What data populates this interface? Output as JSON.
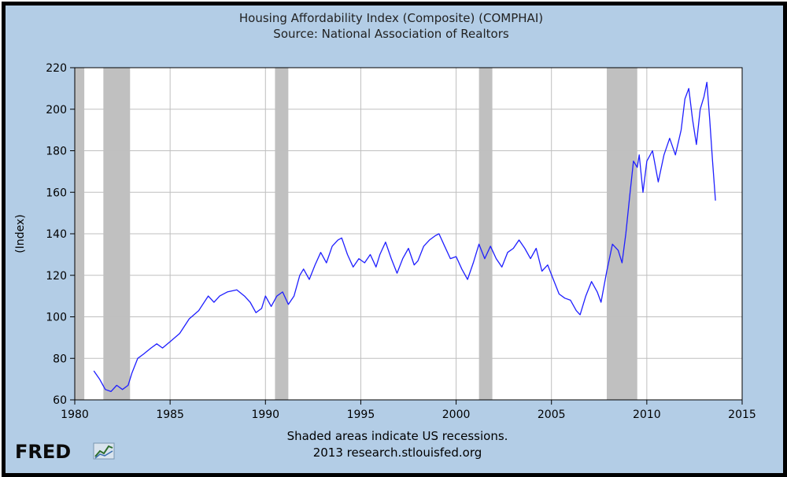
{
  "chart_data": {
    "type": "line",
    "title": "Housing Affordability Index (Composite) (COMPHAI)",
    "subtitle": "Source: National Association of Realtors",
    "ylabel": "(Index)",
    "xlabel": "",
    "xlim": [
      1980,
      2015
    ],
    "ylim": [
      60,
      220
    ],
    "x_ticks": [
      1980,
      1985,
      1990,
      1995,
      2000,
      2005,
      2010,
      2015
    ],
    "y_ticks": [
      60,
      80,
      100,
      120,
      140,
      160,
      180,
      200,
      220
    ],
    "grid": true,
    "recessions": [
      [
        1980.0,
        1980.5
      ],
      [
        1981.5,
        1982.9
      ],
      [
        1990.5,
        1991.2
      ],
      [
        2001.2,
        2001.9
      ],
      [
        2007.9,
        2009.5
      ]
    ],
    "series": [
      {
        "color": "#1f1fff",
        "points": [
          [
            1981.0,
            74
          ],
          [
            1981.3,
            70
          ],
          [
            1981.6,
            65
          ],
          [
            1981.9,
            64
          ],
          [
            1982.2,
            67
          ],
          [
            1982.5,
            65
          ],
          [
            1982.8,
            67
          ],
          [
            1983.0,
            73
          ],
          [
            1983.3,
            80
          ],
          [
            1983.6,
            82
          ],
          [
            1984.0,
            85
          ],
          [
            1984.3,
            87
          ],
          [
            1984.6,
            85
          ],
          [
            1985.0,
            88
          ],
          [
            1985.5,
            92
          ],
          [
            1986.0,
            99
          ],
          [
            1986.5,
            103
          ],
          [
            1987.0,
            110
          ],
          [
            1987.3,
            107
          ],
          [
            1987.6,
            110
          ],
          [
            1988.0,
            112
          ],
          [
            1988.5,
            113
          ],
          [
            1988.9,
            110
          ],
          [
            1989.2,
            107
          ],
          [
            1989.5,
            102
          ],
          [
            1989.8,
            104
          ],
          [
            1990.0,
            110
          ],
          [
            1990.3,
            105
          ],
          [
            1990.6,
            110
          ],
          [
            1990.9,
            112
          ],
          [
            1991.2,
            106
          ],
          [
            1991.5,
            110
          ],
          [
            1991.8,
            120
          ],
          [
            1992.0,
            123
          ],
          [
            1992.3,
            118
          ],
          [
            1992.6,
            125
          ],
          [
            1992.9,
            131
          ],
          [
            1993.2,
            126
          ],
          [
            1993.5,
            134
          ],
          [
            1993.8,
            137
          ],
          [
            1994.0,
            138
          ],
          [
            1994.3,
            130
          ],
          [
            1994.6,
            124
          ],
          [
            1994.9,
            128
          ],
          [
            1995.2,
            126
          ],
          [
            1995.5,
            130
          ],
          [
            1995.8,
            124
          ],
          [
            1996.0,
            130
          ],
          [
            1996.3,
            136
          ],
          [
            1996.6,
            128
          ],
          [
            1996.9,
            121
          ],
          [
            1997.2,
            128
          ],
          [
            1997.5,
            133
          ],
          [
            1997.8,
            125
          ],
          [
            1998.0,
            127
          ],
          [
            1998.3,
            134
          ],
          [
            1998.6,
            137
          ],
          [
            1998.9,
            139
          ],
          [
            1999.1,
            140
          ],
          [
            1999.4,
            134
          ],
          [
            1999.7,
            128
          ],
          [
            2000.0,
            129
          ],
          [
            2000.3,
            123
          ],
          [
            2000.6,
            118
          ],
          [
            2000.9,
            126
          ],
          [
            2001.2,
            135
          ],
          [
            2001.5,
            128
          ],
          [
            2001.8,
            134
          ],
          [
            2002.1,
            128
          ],
          [
            2002.4,
            124
          ],
          [
            2002.7,
            131
          ],
          [
            2003.0,
            133
          ],
          [
            2003.3,
            137
          ],
          [
            2003.6,
            133
          ],
          [
            2003.9,
            128
          ],
          [
            2004.2,
            133
          ],
          [
            2004.5,
            122
          ],
          [
            2004.8,
            125
          ],
          [
            2005.1,
            118
          ],
          [
            2005.4,
            111
          ],
          [
            2005.7,
            109
          ],
          [
            2006.0,
            108
          ],
          [
            2006.3,
            103
          ],
          [
            2006.5,
            101
          ],
          [
            2006.8,
            110
          ],
          [
            2007.1,
            117
          ],
          [
            2007.4,
            112
          ],
          [
            2007.6,
            107
          ],
          [
            2007.9,
            122
          ],
          [
            2008.2,
            135
          ],
          [
            2008.5,
            132
          ],
          [
            2008.7,
            126
          ],
          [
            2008.9,
            140
          ],
          [
            2009.1,
            158
          ],
          [
            2009.3,
            175
          ],
          [
            2009.5,
            172
          ],
          [
            2009.6,
            178
          ],
          [
            2009.8,
            160
          ],
          [
            2010.0,
            175
          ],
          [
            2010.3,
            180
          ],
          [
            2010.6,
            165
          ],
          [
            2010.9,
            178
          ],
          [
            2011.2,
            186
          ],
          [
            2011.5,
            178
          ],
          [
            2011.8,
            190
          ],
          [
            2012.0,
            205
          ],
          [
            2012.2,
            210
          ],
          [
            2012.4,
            195
          ],
          [
            2012.6,
            183
          ],
          [
            2012.8,
            200
          ],
          [
            2013.0,
            206
          ],
          [
            2013.15,
            213
          ],
          [
            2013.3,
            195
          ],
          [
            2013.45,
            175
          ],
          [
            2013.6,
            156
          ]
        ]
      }
    ],
    "notes": [
      "Shaded areas indicate US recessions.",
      "2013 research.stlouisfed.org"
    ],
    "logo": "FRED"
  },
  "colors": {
    "background": "#b3cde6",
    "plot_background": "#ffffff",
    "recession": "#c0c0c0",
    "grid": "#bfbfbf",
    "line": "#1f1fff"
  }
}
